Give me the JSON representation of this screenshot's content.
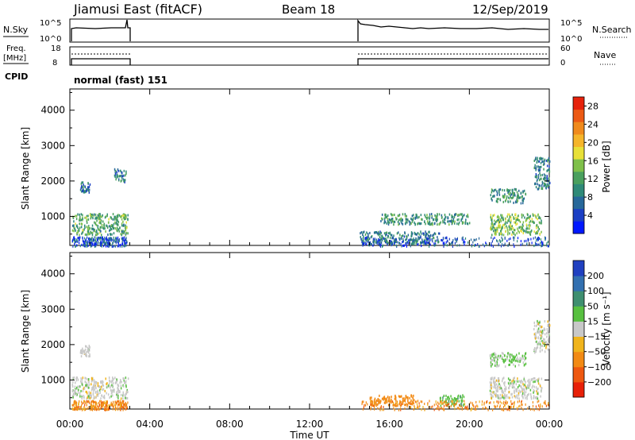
{
  "header": {
    "station": "Jiamusi East (fitACF)",
    "beam": "Beam 18",
    "date": "12/Sep/2019"
  },
  "top_panels": {
    "nsky_label": "N.Sky",
    "nsearch_label": "N.Search",
    "noise_ticks_left": [
      "10^5",
      "10^0"
    ],
    "noise_ticks_right": [
      "10^5",
      "10^0"
    ],
    "freq_label_line1": "Freq.",
    "freq_label_line2": "[MHz]",
    "freq_ticks": [
      "18",
      "8"
    ],
    "nave_label": "Nave",
    "nave_ticks": [
      "60",
      "0"
    ],
    "cpid_label": "CPID",
    "cpid_text": "normal (fast) 151"
  },
  "chart_data": [
    {
      "type": "heatmap",
      "name": "Power",
      "ylabel": "Slant Range [km]",
      "xlabel": "",
      "ylim": [
        180,
        4600
      ],
      "yticks": [
        "4000",
        "3000",
        "2000",
        "1000"
      ],
      "ytick_values": [
        4000,
        3000,
        2000,
        1000
      ],
      "xlim_hours": [
        0,
        24
      ],
      "colorbar": {
        "label": "Power [dB]",
        "ticks": [
          "28",
          "24",
          "20",
          "16",
          "12",
          "8",
          "4"
        ],
        "range": [
          0,
          30
        ],
        "colors": [
          "#0018ff",
          "#1b3fc4",
          "#27689a",
          "#2f8a78",
          "#4aa05e",
          "#7fc04a",
          "#e8e038",
          "#f5b52a",
          "#f08a1c",
          "#ec5a14",
          "#e6220c"
        ]
      },
      "data_gaps_hours": [
        [
          3.0,
          14.4
        ]
      ],
      "echo_regions": [
        {
          "t_start": 0.1,
          "t_end": 2.9,
          "r_min": 500,
          "r_max": 1100,
          "value": 12
        },
        {
          "t_start": 0.5,
          "t_end": 1.0,
          "r_min": 1700,
          "r_max": 2000,
          "value": 8
        },
        {
          "t_start": 2.2,
          "t_end": 2.8,
          "r_min": 2000,
          "r_max": 2400,
          "value": 8
        },
        {
          "t_start": 14.5,
          "t_end": 18.5,
          "r_min": 250,
          "r_max": 600,
          "value": 8
        },
        {
          "t_start": 15.5,
          "t_end": 20.0,
          "r_min": 800,
          "r_max": 1100,
          "value": 10
        },
        {
          "t_start": 21.0,
          "t_end": 23.6,
          "r_min": 500,
          "r_max": 1100,
          "value": 14
        },
        {
          "t_start": 21.0,
          "t_end": 22.8,
          "r_min": 1400,
          "r_max": 1800,
          "value": 10
        },
        {
          "t_start": 23.2,
          "t_end": 24.0,
          "r_min": 1800,
          "r_max": 2700,
          "value": 8
        }
      ]
    },
    {
      "type": "heatmap",
      "name": "Velocity",
      "ylabel": "Slant Range [km]",
      "xlabel": "Time UT",
      "ylim": [
        180,
        4600
      ],
      "yticks": [
        "4000",
        "3000",
        "2000",
        "1000"
      ],
      "ytick_values": [
        4000,
        3000,
        2000,
        1000
      ],
      "xticks": [
        "00:00",
        "04:00",
        "08:00",
        "12:00",
        "16:00",
        "20:00",
        "00:00"
      ],
      "xtick_hours": [
        0,
        4,
        8,
        12,
        16,
        20,
        24
      ],
      "xlim_hours": [
        0,
        24
      ],
      "colorbar": {
        "label": "Velocity [m s⁻¹]",
        "ticks": [
          "200",
          "100",
          "50",
          "15",
          "−15",
          "−50",
          "−100",
          "−200"
        ],
        "colors": [
          "#2040c0",
          "#3370b0",
          "#3f8f70",
          "#58c040",
          "#c8c8c8",
          "#f0b41c",
          "#f28a14",
          "#ee5810",
          "#e82008"
        ]
      },
      "data_gaps_hours": [
        [
          3.0,
          14.4
        ]
      ],
      "echo_regions": [
        {
          "t_start": 0.1,
          "t_end": 2.9,
          "r_min": 500,
          "r_max": 1100,
          "value": 0
        },
        {
          "t_start": 0.5,
          "t_end": 1.0,
          "r_min": 1700,
          "r_max": 2000,
          "value": 0
        },
        {
          "t_start": 15.0,
          "t_end": 17.2,
          "r_min": 300,
          "r_max": 600,
          "value": -80
        },
        {
          "t_start": 18.5,
          "t_end": 19.8,
          "r_min": 300,
          "r_max": 600,
          "value": 40
        },
        {
          "t_start": 21.0,
          "t_end": 23.6,
          "r_min": 500,
          "r_max": 1100,
          "value": 0
        },
        {
          "t_start": 21.0,
          "t_end": 22.8,
          "r_min": 1400,
          "r_max": 1800,
          "value": 20
        },
        {
          "t_start": 23.2,
          "t_end": 24.0,
          "r_min": 1800,
          "r_max": 2700,
          "value": 0
        }
      ]
    }
  ]
}
